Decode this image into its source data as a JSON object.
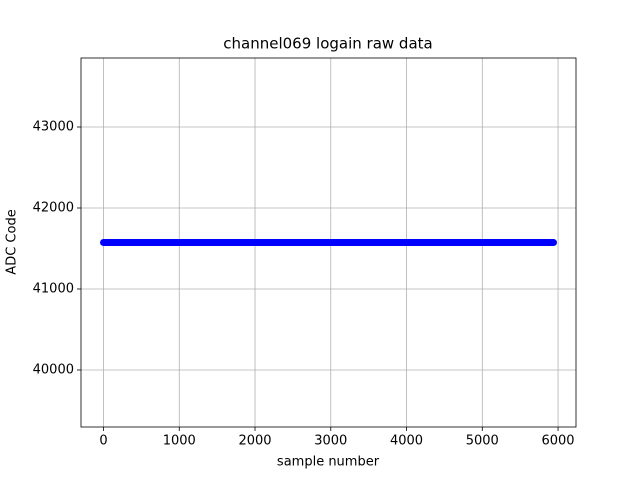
{
  "chart_data": {
    "type": "line",
    "title": "channel069 logain raw data",
    "x_label": "sample number",
    "y_label": "ADC Code",
    "x": [
      0,
      5940
    ],
    "series": [
      {
        "color": "#0000ff",
        "values": [
          41574,
          41574
        ]
      }
    ],
    "xlim": [
      -297,
      6237
    ],
    "xticks": [
      0,
      1000,
      2000,
      3000,
      4000,
      5000,
      6000
    ],
    "ylim": [
      39296,
      43852
    ],
    "yticks": [
      40000,
      41000,
      42000,
      43000
    ],
    "grid": true
  }
}
